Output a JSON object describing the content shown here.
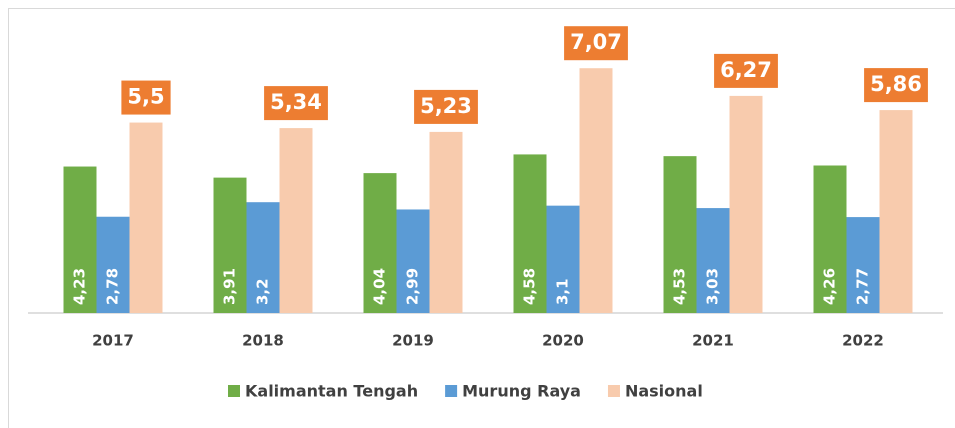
{
  "chart_data": {
    "type": "bar",
    "categories": [
      "2017",
      "2018",
      "2019",
      "2020",
      "2021",
      "2022"
    ],
    "series": [
      {
        "name": "Kalimantan Tengah",
        "color": "#70ad47",
        "values": [
          4.23,
          3.91,
          4.04,
          4.58,
          4.53,
          4.26
        ],
        "value_labels": [
          "4,23",
          "3,91",
          "4,04",
          "4,58",
          "4,53",
          "4,26"
        ]
      },
      {
        "name": "Murung Raya",
        "color": "#5b9bd5",
        "values": [
          2.78,
          3.2,
          2.99,
          3.1,
          3.03,
          2.77
        ],
        "value_labels": [
          "2,78",
          "3,2",
          "2,99",
          "3,1",
          "3,03",
          "2,77"
        ]
      },
      {
        "name": "Nasional",
        "color": "#f8cbad",
        "label_color": "#ed7d31",
        "values": [
          5.5,
          5.34,
          5.23,
          7.07,
          6.27,
          5.86
        ],
        "value_labels": [
          "5,5",
          "5,34",
          "5,23",
          "7,07",
          "6,27",
          "5,86"
        ]
      }
    ],
    "ylim": [
      0,
      8
    ],
    "legend": "bottom"
  }
}
